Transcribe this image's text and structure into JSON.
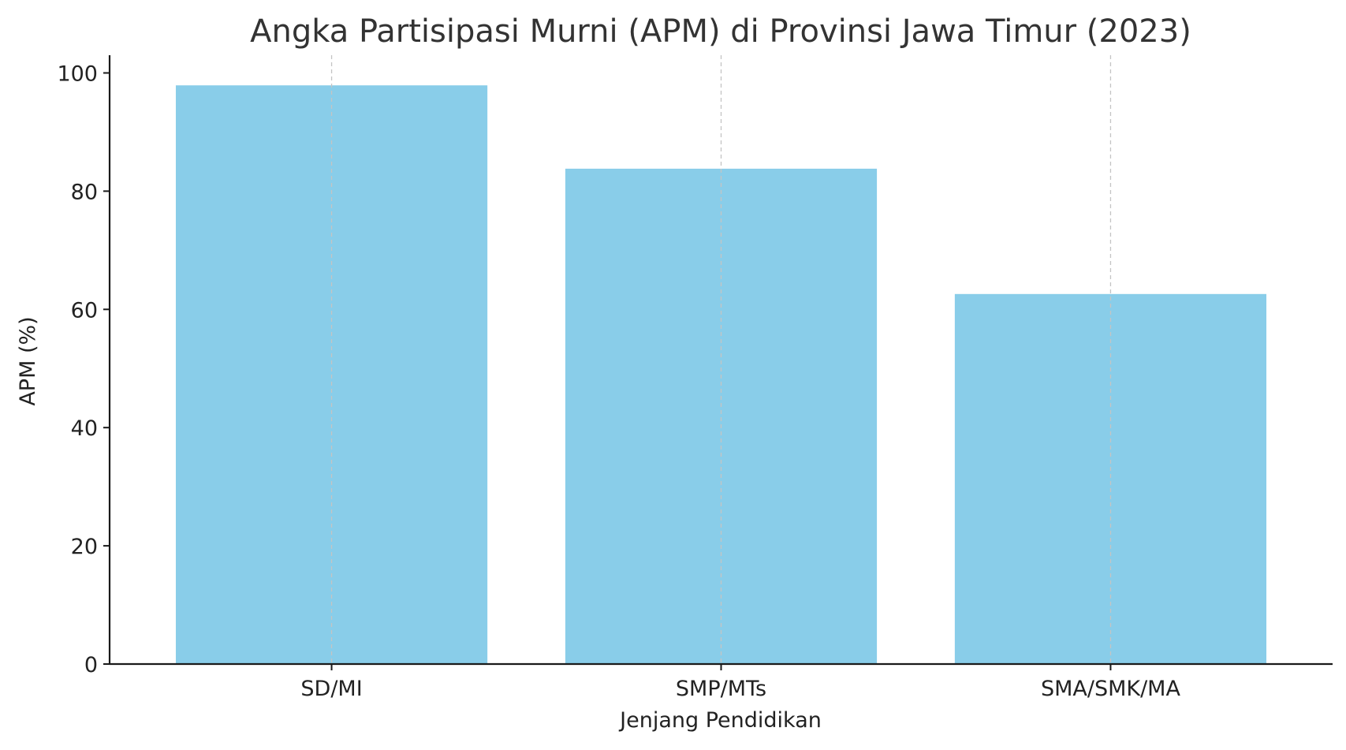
{
  "chart_data": {
    "type": "bar",
    "title": "Angka Partisipasi Murni (APM) di Provinsi Jawa Timur (2023)",
    "xlabel": "Jenjang Pendidikan",
    "ylabel": "APM (%)",
    "categories": [
      "SD/MI",
      "SMP/MTs",
      "SMA/SMK/MA"
    ],
    "values": [
      97.9,
      83.8,
      62.6
    ],
    "ylim": [
      0,
      103
    ],
    "yticks": [
      0,
      20,
      40,
      60,
      80,
      100
    ],
    "bar_color": "#89CDE9",
    "grid": "x-dashed",
    "legend": "none"
  }
}
